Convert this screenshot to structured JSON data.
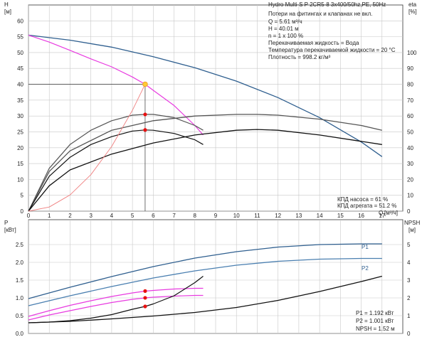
{
  "chart_data": [
    {
      "type": "line",
      "panel": "head",
      "axes": {
        "left": {
          "label": "H",
          "unit": "[м]",
          "ylim": [
            0,
            65
          ],
          "ticks": [
            0,
            5,
            10,
            15,
            20,
            25,
            30,
            35,
            40,
            45,
            50,
            55,
            60
          ]
        },
        "right": {
          "label": "eta",
          "unit": "[%]",
          "ylim": [
            0,
            130
          ],
          "ticks": [
            0,
            10,
            20,
            30,
            40,
            50,
            60,
            70,
            80,
            90,
            100
          ]
        },
        "x": {
          "label": "Q",
          "unit": "[м³/ч]",
          "xlim": [
            0,
            18
          ],
          "ticks": [
            0,
            1,
            2,
            3,
            4,
            5,
            6,
            7,
            8,
            9,
            10,
            11,
            12,
            13,
            14,
            15,
            16,
            17
          ]
        }
      },
      "grid": true,
      "series": [
        {
          "id": "head-max",
          "axis": "left",
          "color": "#2f5f8f",
          "x": [
            0,
            2,
            4,
            6,
            8,
            10,
            12,
            14,
            16,
            17
          ],
          "y": [
            55.5,
            53.9,
            51.7,
            48.7,
            45.2,
            41.0,
            35.8,
            29.5,
            21.8,
            17.2
          ]
        },
        {
          "id": "head-operating",
          "axis": "left",
          "color": "#e83be0",
          "x": [
            0,
            1,
            2,
            3,
            4,
            5,
            5.61,
            6,
            7,
            8,
            8.4
          ],
          "y": [
            55.5,
            53.3,
            50.7,
            48.0,
            45.5,
            42.3,
            40.0,
            38.1,
            33.3,
            27.0,
            24.0
          ]
        },
        {
          "id": "eta-pump-max",
          "axis": "right",
          "color": "#555555",
          "x": [
            0,
            1,
            2,
            4,
            6,
            8,
            10,
            11,
            12,
            14,
            16,
            17
          ],
          "y": [
            0,
            25,
            38,
            51,
            57,
            60,
            61,
            61,
            60.5,
            58,
            54,
            51
          ]
        },
        {
          "id": "eta-pump",
          "axis": "right",
          "color": "#555555",
          "x": [
            0,
            1,
            2,
            3,
            4,
            5,
            5.61,
            6,
            7,
            8,
            8.4
          ],
          "y": [
            0,
            27,
            42,
            51,
            57,
            60.5,
            61,
            61,
            59,
            54,
            51
          ]
        },
        {
          "id": "eta-unit-max",
          "axis": "right",
          "color": "#111111",
          "x": [
            0,
            1,
            2,
            4,
            6,
            8,
            10,
            11,
            12,
            14,
            16,
            17
          ],
          "y": [
            0,
            16,
            26,
            36,
            43,
            48,
            51,
            51.5,
            51,
            48,
            44,
            42
          ]
        },
        {
          "id": "eta-unit",
          "axis": "right",
          "color": "#111111",
          "x": [
            0,
            1,
            2,
            3,
            4,
            5,
            5.61,
            6,
            7,
            8,
            8.4
          ],
          "y": [
            0,
            22,
            34,
            42,
            47,
            50.5,
            51.2,
            51,
            49,
            45,
            42
          ]
        },
        {
          "id": "system-curve",
          "axis": "left",
          "color": "#f08080",
          "x": [
            0,
            1,
            2,
            3,
            4,
            5,
            5.61
          ],
          "y": [
            0,
            1.3,
            5.1,
            11.5,
            20.4,
            31.8,
            40.0
          ]
        }
      ],
      "markers": [
        {
          "id": "duty-point",
          "axis": "left",
          "x": 5.61,
          "y": 40.01,
          "color": "#f0a030"
        },
        {
          "id": "eta-pump-point",
          "axis": "right",
          "x": 5.61,
          "y": 61,
          "color": "#e81010"
        },
        {
          "id": "eta-unit-point",
          "axis": "right",
          "x": 5.61,
          "y": 51.2,
          "color": "#e81010"
        }
      ],
      "info_lines": [
        "Hydro Multi-S P 2CR5-8 3x400/50hz,PE, 50Hz",
        "Потери на фитингах и клапанах не вкл.",
        "Q = 5.61 м³/ч",
        "H = 40.01 м",
        "n = 1 x 100 %",
        "Перекачиваемая жидкость = Вода",
        "Температура перекачиваемой жидкости = 20 °C",
        "Плотность = 998.2 кг/м³"
      ],
      "efficiency_lines": [
        "КПД насоса = 61 %",
        "КПД агрегата = 51.2 %"
      ]
    },
    {
      "type": "line",
      "panel": "power",
      "axes": {
        "left": {
          "label": "P",
          "unit": "[кВт]",
          "ylim": [
            0,
            3.2
          ],
          "ticks": [
            "0.0",
            "0.5",
            "1.0",
            "1.5",
            "2.0",
            "2.5"
          ]
        },
        "right": {
          "label": "NPSH",
          "unit": "[м]",
          "ylim": [
            0,
            6.4
          ],
          "ticks": [
            0,
            1,
            2,
            3,
            4,
            5
          ]
        },
        "x": {
          "xlim": [
            0,
            18
          ]
        }
      },
      "grid": true,
      "series": [
        {
          "id": "P1-max",
          "name": "P1",
          "axis": "left",
          "color": "#2f5f8f",
          "x": [
            0,
            2,
            4,
            6,
            8,
            10,
            12,
            14,
            16,
            17
          ],
          "y": [
            0.98,
            1.3,
            1.6,
            1.88,
            2.12,
            2.3,
            2.43,
            2.5,
            2.52,
            2.52
          ]
        },
        {
          "id": "P2-max",
          "name": "P2",
          "axis": "left",
          "color": "#4a7fb0",
          "x": [
            0,
            2,
            4,
            6,
            8,
            10,
            12,
            14,
            16,
            17
          ],
          "y": [
            0.78,
            1.06,
            1.32,
            1.56,
            1.76,
            1.92,
            2.03,
            2.09,
            2.11,
            2.11
          ]
        },
        {
          "id": "P1-operating",
          "axis": "left",
          "color": "#e83be0",
          "x": [
            0,
            1,
            2,
            3,
            4,
            5,
            5.61,
            6,
            7,
            8,
            8.4
          ],
          "y": [
            0.48,
            0.64,
            0.79,
            0.92,
            1.04,
            1.14,
            1.19,
            1.21,
            1.25,
            1.27,
            1.27
          ]
        },
        {
          "id": "P2-operating",
          "axis": "left",
          "color": "#e83be0",
          "x": [
            0,
            1,
            2,
            3,
            4,
            5,
            5.61,
            6,
            7,
            8,
            8.4
          ],
          "y": [
            0.38,
            0.52,
            0.64,
            0.76,
            0.87,
            0.96,
            1.0,
            1.02,
            1.05,
            1.07,
            1.07
          ]
        },
        {
          "id": "npsh-max",
          "axis": "right",
          "color": "#111111",
          "x": [
            0,
            2,
            4,
            6,
            8,
            10,
            12,
            14,
            16,
            17
          ],
          "y": [
            0.6,
            0.68,
            0.82,
            0.98,
            1.18,
            1.46,
            1.86,
            2.36,
            2.92,
            3.22
          ]
        },
        {
          "id": "npsh-operating",
          "axis": "right",
          "color": "#111111",
          "x": [
            0,
            1,
            2,
            3,
            4,
            5,
            5.61,
            6,
            7,
            8,
            8.4
          ],
          "y": [
            0.6,
            0.64,
            0.72,
            0.86,
            1.06,
            1.36,
            1.52,
            1.66,
            2.12,
            2.86,
            3.22
          ]
        }
      ],
      "markers": [
        {
          "id": "p1-point",
          "axis": "left",
          "x": 5.61,
          "y": 1.192,
          "color": "#e81010"
        },
        {
          "id": "p2-point",
          "axis": "left",
          "x": 5.61,
          "y": 1.001,
          "color": "#e81010"
        },
        {
          "id": "npsh-point",
          "axis": "right",
          "x": 5.61,
          "y": 1.52,
          "color": "#e81010"
        }
      ],
      "legend_labels": [
        "P1",
        "P2"
      ],
      "info_lines": [
        "P1 = 1.192 кВт",
        "P2 = 1.001 кВт",
        "NPSH = 1.52 м"
      ]
    }
  ]
}
